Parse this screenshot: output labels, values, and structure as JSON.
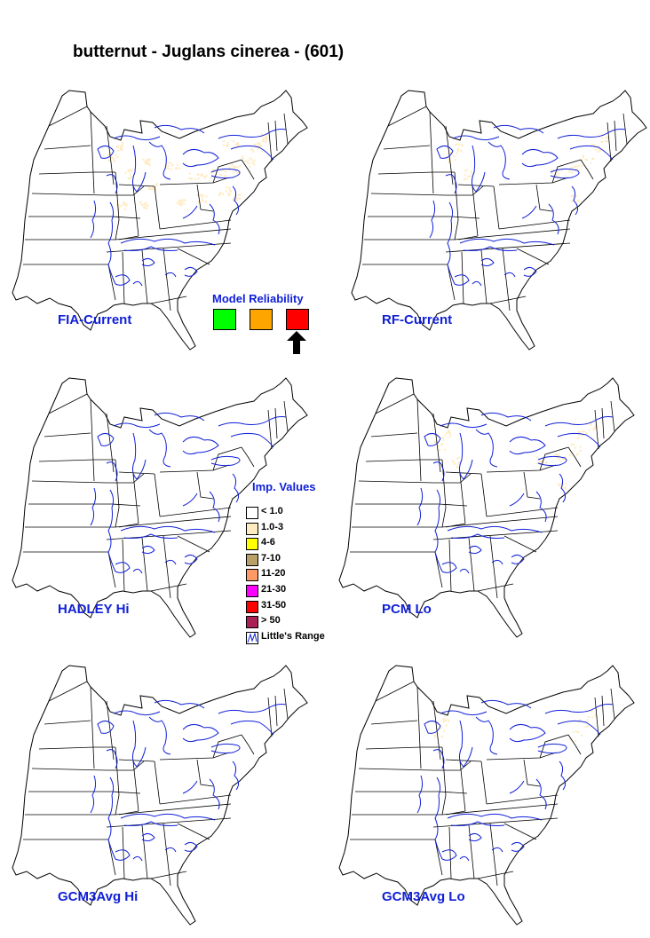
{
  "title": "butternut - Juglans cinerea - (601)",
  "maps": [
    {
      "label": "FIA-Current",
      "density": "high"
    },
    {
      "label": "RF-Current",
      "density": "medium"
    },
    {
      "label": "HADLEY Hi",
      "density": "none"
    },
    {
      "label": "PCM Lo",
      "density": "medium"
    },
    {
      "label": "GCM3Avg Hi",
      "density": "none"
    },
    {
      "label": "GCM3Avg Lo",
      "density": "low"
    }
  ],
  "model_reliability": {
    "title": "Model Reliability",
    "levels": [
      {
        "color": "#00ff00"
      },
      {
        "color": "#ffa500"
      },
      {
        "color": "#ff0000",
        "selected": true
      }
    ]
  },
  "legend": {
    "title": "Imp. Values",
    "items": [
      {
        "label": "< 1.0",
        "color": "#ffffff"
      },
      {
        "label": "1.0-3",
        "color": "#ffebc0"
      },
      {
        "label": "4-6",
        "color": "#ffff00"
      },
      {
        "label": "7-10",
        "color": "#b8a068"
      },
      {
        "label": "11-20",
        "color": "#ff9966"
      },
      {
        "label": "21-30",
        "color": "#ff00ff"
      },
      {
        "label": "31-50",
        "color": "#ff0000"
      },
      {
        "label": "> 50",
        "color": "#aa2255"
      }
    ],
    "range_label": "Little's Range",
    "range_color": "#1020d8"
  }
}
